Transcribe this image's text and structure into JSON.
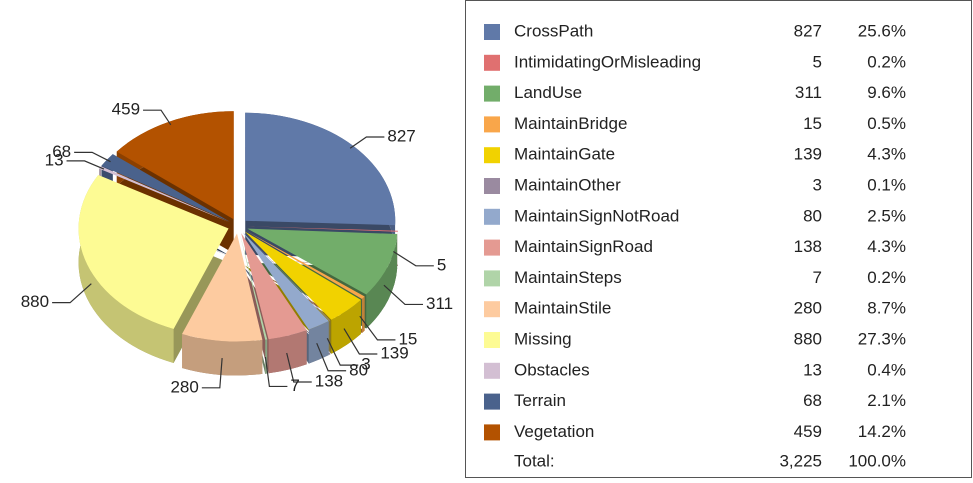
{
  "chart_data": {
    "type": "pie",
    "categories": [
      "CrossPath",
      "IntimidatingOrMisleading",
      "LandUse",
      "MaintainBridge",
      "MaintainGate",
      "MaintainOther",
      "MaintainSignNotRoad",
      "MaintainSignRoad",
      "MaintainSteps",
      "MaintainStile",
      "Missing",
      "Obstacles",
      "Terrain",
      "Vegetation"
    ],
    "values": [
      827,
      5,
      311,
      15,
      139,
      3,
      80,
      138,
      7,
      280,
      880,
      13,
      68,
      459
    ],
    "percent_labels": [
      "25.6%",
      "0.2%",
      "9.6%",
      "0.5%",
      "4.3%",
      "0.1%",
      "2.5%",
      "4.3%",
      "0.2%",
      "8.7%",
      "27.3%",
      "0.4%",
      "2.1%",
      "14.2%"
    ],
    "colors": [
      "#6079a8",
      "#e07070",
      "#72ad6a",
      "#f9a64a",
      "#f1d200",
      "#9a8aa0",
      "#93a9cc",
      "#e49a92",
      "#b0d4a8",
      "#fdcba0",
      "#fdfb94",
      "#d3bfd3",
      "#4a628c",
      "#b35200"
    ],
    "total_label": "Total:",
    "total_value": "3,225",
    "total_percent": "100.0%"
  }
}
